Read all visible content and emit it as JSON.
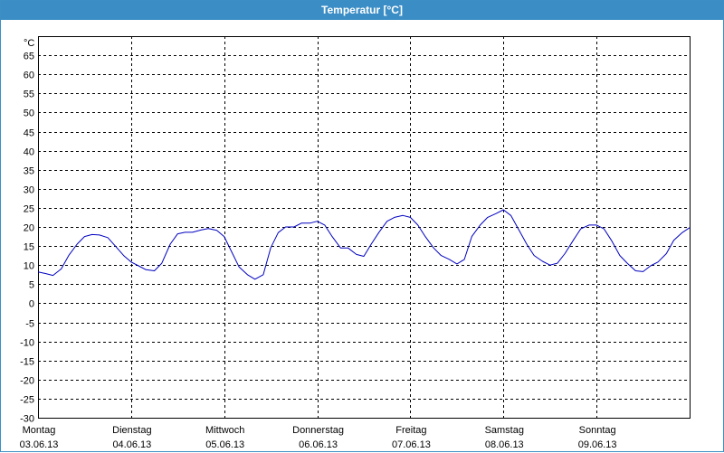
{
  "window": {
    "title": "Temperatur [°C]"
  },
  "chart_data": {
    "type": "line",
    "title": "Temperatur [°C]",
    "ylabel": "°C",
    "ylim": [
      -30,
      70
    ],
    "yticks": [
      -30,
      -25,
      -20,
      -15,
      -10,
      -5,
      0,
      5,
      10,
      15,
      20,
      25,
      30,
      35,
      40,
      45,
      50,
      55,
      60,
      65
    ],
    "xlim": [
      0,
      7
    ],
    "grid": true,
    "categories": [
      {
        "day": "Montag",
        "date": "03.06.13"
      },
      {
        "day": "Dienstag",
        "date": "04.06.13"
      },
      {
        "day": "Mittwoch",
        "date": "05.06.13"
      },
      {
        "day": "Donnerstag",
        "date": "06.06.13"
      },
      {
        "day": "Freitag",
        "date": "07.06.13"
      },
      {
        "day": "Samstag",
        "date": "08.06.13"
      },
      {
        "day": "Sonntag",
        "date": "09.06.13"
      }
    ],
    "colors": {
      "line": "#0000c0",
      "grid": "#000000"
    },
    "series": [
      {
        "x": [
          0,
          0.08,
          0.16,
          0.25,
          0.33,
          0.42,
          0.5,
          0.58,
          0.66,
          0.75,
          0.83,
          0.92,
          1.0,
          1.08,
          1.16,
          1.25,
          1.33,
          1.42,
          1.5,
          1.58,
          1.66,
          1.75,
          1.83,
          1.92,
          2.0,
          2.08,
          2.16,
          2.25,
          2.33,
          2.42,
          2.5,
          2.58,
          2.66,
          2.75,
          2.83,
          2.92,
          3.0,
          3.08,
          3.16,
          3.25,
          3.33,
          3.42,
          3.5,
          3.58,
          3.66,
          3.75,
          3.83,
          3.92,
          4.0,
          4.08,
          4.16,
          4.25,
          4.33,
          4.42,
          4.5,
          4.58,
          4.66,
          4.75,
          4.83,
          4.92,
          5.0,
          5.08,
          5.16,
          5.25,
          5.33,
          5.42,
          5.5,
          5.58,
          5.66,
          5.75,
          5.83,
          5.92,
          6.0,
          6.08,
          6.16,
          6.25,
          6.33,
          6.42,
          6.5,
          6.58,
          6.66,
          6.75,
          6.83,
          6.92,
          7.0
        ],
        "values": [
          8.2,
          7.8,
          7.3,
          9.0,
          12.5,
          15.5,
          17.5,
          18.0,
          17.9,
          17.2,
          15.0,
          12.5,
          10.8,
          9.8,
          8.8,
          8.5,
          10.5,
          15.5,
          18.2,
          18.6,
          18.6,
          19.2,
          19.6,
          19.1,
          17.5,
          13.5,
          9.5,
          7.5,
          6.3,
          7.5,
          14.5,
          18.5,
          20.0,
          20.0,
          21.0,
          21.0,
          21.5,
          20.5,
          17.5,
          14.5,
          14.5,
          12.8,
          12.3,
          15.5,
          18.5,
          21.5,
          22.5,
          23.0,
          22.5,
          20.5,
          17.5,
          14.5,
          12.5,
          11.5,
          10.3,
          11.5,
          17.5,
          20.5,
          22.5,
          23.5,
          24.5,
          23.0,
          19.5,
          15.5,
          12.5,
          11.0,
          10.0,
          10.5,
          13.0,
          16.5,
          19.5,
          20.5,
          20.5,
          19.5,
          16.5,
          12.5,
          10.5,
          8.5,
          8.3,
          9.8,
          10.8,
          13.0,
          16.5,
          18.5,
          19.8
        ]
      }
    ]
  }
}
